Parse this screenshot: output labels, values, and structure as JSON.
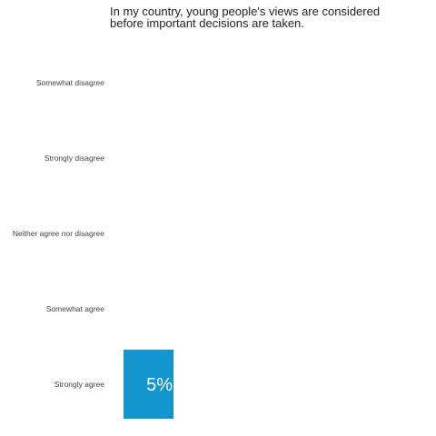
{
  "chart_data": {
    "type": "bar",
    "orientation": "horizontal",
    "title_lines": [
      "In my country, young people's views are considered",
      "before important decisions are taken."
    ],
    "categories": [
      "Somewhat disagree",
      "Strongly disagree",
      "Neither agree nor disagree",
      "Somewhat agree",
      "Strongly agree"
    ],
    "values": [
      0,
      0,
      0,
      0,
      5
    ],
    "value_labels": [
      "",
      "",
      "",
      "",
      "5%"
    ],
    "unit": "%",
    "xlim": [
      0,
      30
    ],
    "grid": false,
    "legend": "none",
    "bar_color": "#1396cf"
  }
}
